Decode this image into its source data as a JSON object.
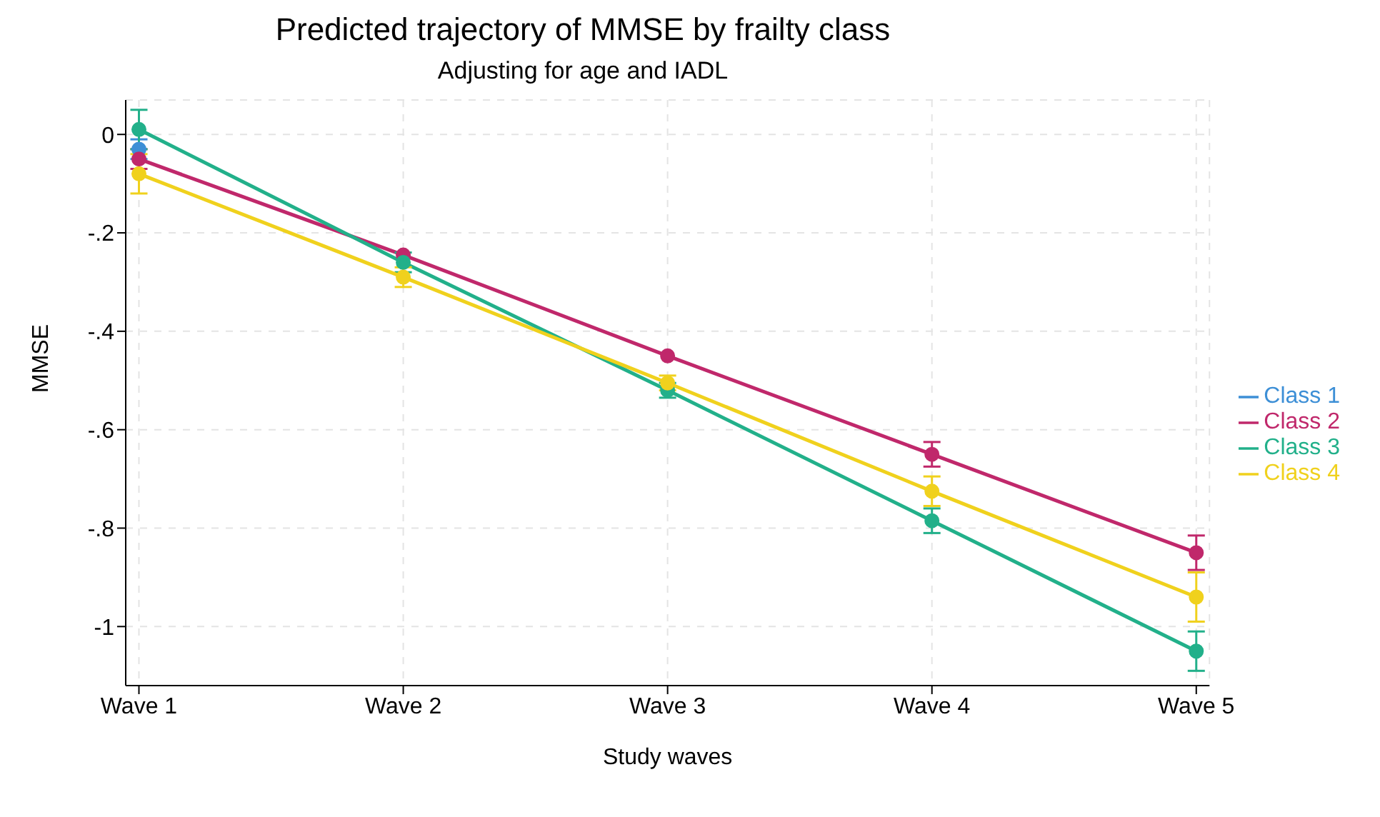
{
  "chart_data": {
    "type": "line",
    "title": "Predicted trajectory of MMSE by frailty class",
    "subtitle": "Adjusting for age and IADL",
    "xlabel": "Study waves",
    "ylabel": "MMSE",
    "categories": [
      "Wave 1",
      "Wave 2",
      "Wave 3",
      "Wave 4",
      "Wave 5"
    ],
    "series": [
      {
        "name": "Class 1",
        "color": "#3d8fd6",
        "values": [
          -0.03,
          null,
          null,
          null,
          null
        ],
        "errors": [
          0.02,
          null,
          null,
          null,
          null
        ]
      },
      {
        "name": "Class 2",
        "color": "#c0286b",
        "values": [
          -0.05,
          -0.245,
          -0.45,
          -0.65,
          -0.85
        ],
        "errors": [
          0.02,
          null,
          null,
          0.025,
          0.035
        ]
      },
      {
        "name": "Class 3",
        "color": "#22b08a",
        "values": [
          0.01,
          -0.26,
          -0.52,
          -0.785,
          -1.05
        ],
        "errors": [
          0.04,
          0.02,
          0.015,
          0.025,
          0.04
        ]
      },
      {
        "name": "Class 4",
        "color": "#f0d11d",
        "values": [
          -0.08,
          -0.29,
          -0.505,
          -0.725,
          -0.94
        ],
        "errors": [
          0.04,
          0.02,
          0.015,
          0.03,
          0.05
        ]
      }
    ],
    "ylim": [
      -1.12,
      0.07
    ],
    "yticks": [
      0,
      {
        "value": -0.2,
        "label": "-.2"
      },
      {
        "value": -0.4,
        "label": "-.4"
      },
      {
        "value": -0.6,
        "label": "-.6"
      },
      {
        "value": -0.8,
        "label": "-.8"
      },
      {
        "value": -1,
        "label": "-1"
      }
    ],
    "grid": true,
    "legend": "right",
    "marker": "circle",
    "line_style": "solid"
  }
}
